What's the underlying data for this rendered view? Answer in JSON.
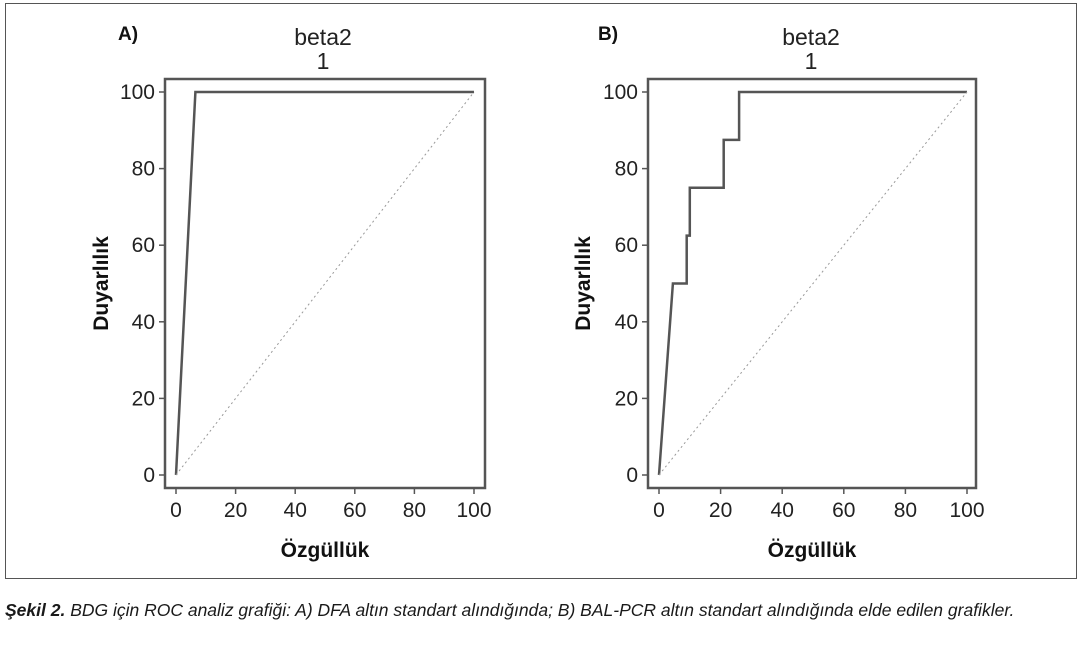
{
  "figure": {
    "caption_label": "Şekil 2.",
    "caption_text": " BDG için ROC analiz grafiği: A) DFA altın standart alındığında; B) BAL-PCR altın standart alındığında elde edilen grafikler."
  },
  "chart_data": [
    {
      "type": "line",
      "panel_label": "A)",
      "title": "beta2",
      "subtitle": "1",
      "xlabel": "Özgüllük",
      "ylabel": "Duyarlılık",
      "xlim": [
        0,
        100
      ],
      "ylim": [
        0,
        100
      ],
      "xticks": [
        "0",
        "20",
        "40",
        "60",
        "80",
        "100"
      ],
      "yticks": [
        "0",
        "20",
        "40",
        "60",
        "80",
        "100"
      ],
      "grid": false,
      "series": [
        {
          "style": "solid",
          "color": "#555555",
          "x": [
            0,
            6.5,
            100
          ],
          "y": [
            0,
            100,
            100
          ]
        },
        {
          "style": "dotted",
          "color": "#999999",
          "x": [
            0,
            100
          ],
          "y": [
            0,
            100
          ]
        }
      ]
    },
    {
      "type": "line",
      "panel_label": "B)",
      "title": "beta2",
      "subtitle": "1",
      "xlabel": "Özgüllük",
      "ylabel": "Duyarlılık",
      "xlim": [
        0,
        100
      ],
      "ylim": [
        0,
        100
      ],
      "xticks": [
        "0",
        "20",
        "40",
        "60",
        "80",
        "100"
      ],
      "yticks": [
        "0",
        "20",
        "40",
        "60",
        "80",
        "100"
      ],
      "grid": false,
      "series": [
        {
          "style": "solid",
          "color": "#555555",
          "x": [
            0,
            4.5,
            9,
            9,
            10,
            10,
            21,
            21,
            26,
            26,
            100
          ],
          "y": [
            0,
            50,
            50,
            62.5,
            62.5,
            75,
            75,
            87.5,
            87.5,
            100,
            100
          ]
        },
        {
          "style": "dotted",
          "color": "#999999",
          "x": [
            0,
            100
          ],
          "y": [
            0,
            100
          ]
        }
      ]
    }
  ]
}
